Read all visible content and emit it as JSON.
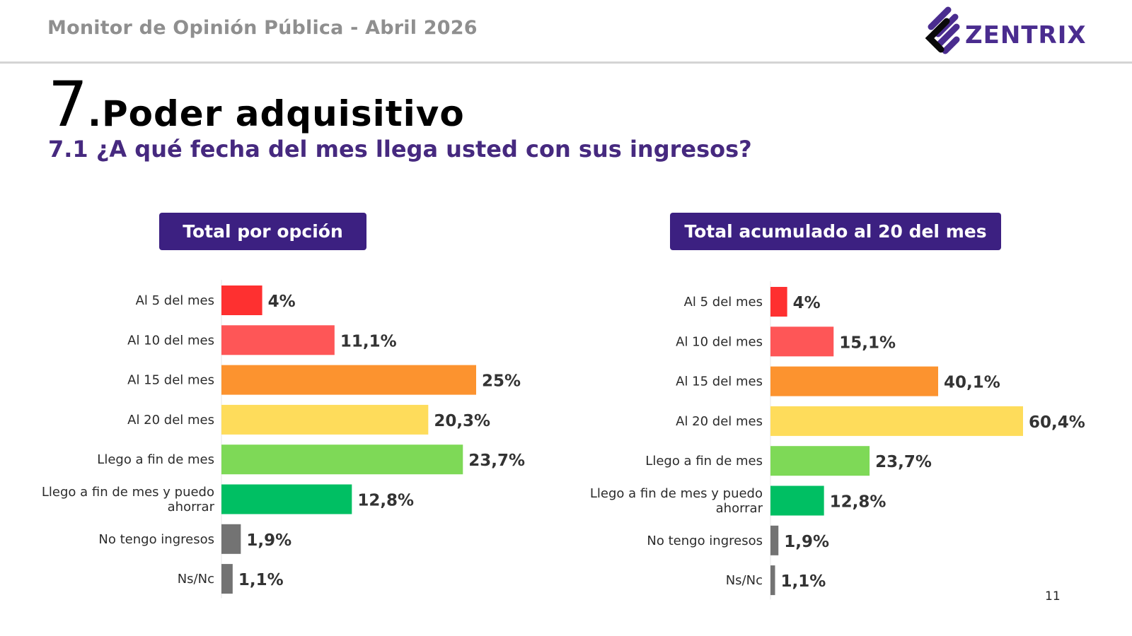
{
  "header": {
    "title": "Monitor de Opinión Pública - Abril 2026",
    "logo_text": "ZENTRIX",
    "brand_color": "#4a2c8f"
  },
  "section": {
    "number": "7",
    "name": ".Poder adquisitivo",
    "question": "7.1 ¿A qué fecha del mes llega usted con sus ingresos?"
  },
  "page_number": "11",
  "chart_data": [
    {
      "type": "bar",
      "orientation": "horizontal",
      "title": "Total por opción",
      "categories": [
        "Al 5 del mes",
        "Al 10 del mes",
        "Al 15 del mes",
        "Al 20 del mes",
        "Llego a fin de mes",
        "Llego a fin de mes y puedo ahorrar",
        "No tengo ingresos",
        "Ns/Nc"
      ],
      "values": [
        4,
        11.1,
        25,
        20.3,
        23.7,
        12.8,
        1.9,
        1.1
      ],
      "labels": [
        "4%",
        "11,1%",
        "25%",
        "20,3%",
        "23,7%",
        "12,8%",
        "1,9%",
        "1,1%"
      ],
      "colors": [
        "#fe3030",
        "#fe5657",
        "#fc932f",
        "#fedc5b",
        "#7ed957",
        "#00bf63",
        "#737373",
        "#737373"
      ],
      "xlabel": "",
      "ylabel": "",
      "xlim": [
        0,
        25
      ],
      "grid": false,
      "legend": "none"
    },
    {
      "type": "bar",
      "orientation": "horizontal",
      "title": "Total acumulado al 20 del mes",
      "categories": [
        "Al 5 del mes",
        "Al 10 del mes",
        "Al 15 del mes",
        "Al 20 del mes",
        "Llego a fin de mes",
        "Llego a fin de mes y puedo ahorrar",
        "No tengo ingresos",
        "Ns/Nc"
      ],
      "values": [
        4,
        15.1,
        40.1,
        60.4,
        23.7,
        12.8,
        1.9,
        1.1
      ],
      "labels": [
        "4%",
        "15,1%",
        "40,1%",
        "60,4%",
        "23,7%",
        "12,8%",
        "1,9%",
        "1,1%"
      ],
      "colors": [
        "#fe3030",
        "#fe5657",
        "#fc932f",
        "#fedc5b",
        "#7ed957",
        "#00bf63",
        "#737373",
        "#737373"
      ],
      "xlabel": "",
      "ylabel": "",
      "xlim": [
        0,
        60.4
      ],
      "grid": false,
      "legend": "none"
    }
  ]
}
